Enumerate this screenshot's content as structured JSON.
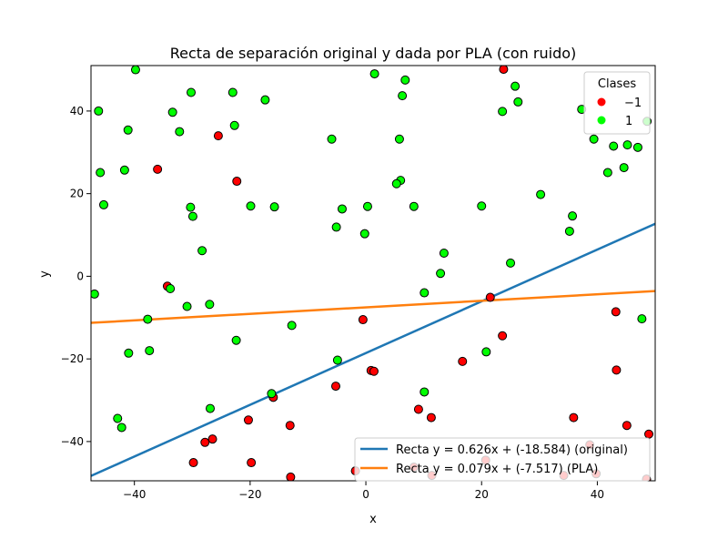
{
  "chart_data": {
    "type": "scatter",
    "title": "Recta de separación original y dada por PLA (con ruido)",
    "xlabel": "x",
    "ylabel": "y",
    "xlim": [
      -47.5,
      50
    ],
    "ylim": [
      -49.5,
      51
    ],
    "xticks": [
      -40,
      -20,
      0,
      20,
      40
    ],
    "yticks": [
      -40,
      -20,
      0,
      20,
      40
    ],
    "xtick_labels": [
      "−40",
      "−20",
      "0",
      "20",
      "40"
    ],
    "ytick_labels": [
      "−40",
      "−20",
      "0",
      "20",
      "40"
    ],
    "grid": false,
    "legend_classes": {
      "title": "Clases",
      "placement": "top-right",
      "entries": [
        {
          "label": "−1",
          "color": "#ff0000"
        },
        {
          "label": "1",
          "color": "#00ff00"
        }
      ]
    },
    "legend_lines": {
      "placement": "bottom-right",
      "entries": [
        {
          "label": "Recta y = 0.626x + (-18.584) (original)",
          "color": "#1f77b4"
        },
        {
          "label": "Recta y = 0.079x + (-7.517) (PLA)",
          "color": "#ff7f0e"
        }
      ]
    },
    "lines": [
      {
        "name": "Recta y = 0.626x + (-18.584) (original)",
        "slope": 0.626,
        "intercept": -18.584,
        "color": "#1f77b4"
      },
      {
        "name": "Recta y = 0.079x + (-7.517) (PLA)",
        "slope": 0.079,
        "intercept": -7.517,
        "color": "#ff7f0e"
      }
    ],
    "series": [
      {
        "name": "−1",
        "color": "#ff0000",
        "points": [
          [
            23.8,
            50.1
          ],
          [
            -25.5,
            34.0
          ],
          [
            -22.3,
            23.0
          ],
          [
            -36.0,
            25.9
          ],
          [
            -34.3,
            -2.4
          ],
          [
            21.5,
            -5.1
          ],
          [
            43.2,
            -8.6
          ],
          [
            -0.5,
            -10.5
          ],
          [
            23.6,
            -14.4
          ],
          [
            16.7,
            -20.6
          ],
          [
            43.3,
            -22.7
          ],
          [
            0.9,
            -22.8
          ],
          [
            1.4,
            -23.0
          ],
          [
            -5.2,
            -26.6
          ],
          [
            -16.0,
            -29.3
          ],
          [
            9.1,
            -32.2
          ],
          [
            11.3,
            -34.2
          ],
          [
            35.9,
            -34.2
          ],
          [
            -20.3,
            -34.8
          ],
          [
            -13.1,
            -36.1
          ],
          [
            45.1,
            -36.1
          ],
          [
            48.9,
            -38.2
          ],
          [
            -26.5,
            -39.4
          ],
          [
            -27.8,
            -40.2
          ],
          [
            38.7,
            -40.8
          ],
          [
            -29.8,
            -45.1
          ],
          [
            -19.8,
            -45.1
          ],
          [
            8.3,
            -46.2
          ],
          [
            -1.8,
            -47.1
          ],
          [
            39.8,
            -47.8
          ],
          [
            11.4,
            -48.2
          ],
          [
            34.2,
            -48.2
          ],
          [
            -13.0,
            -48.6
          ],
          [
            48.5,
            -49.1
          ],
          [
            20.7,
            -44.5
          ]
        ]
      },
      {
        "name": "1",
        "color": "#00ff00",
        "points": [
          [
            -39.8,
            50.0
          ],
          [
            1.5,
            49.0
          ],
          [
            6.8,
            47.5
          ],
          [
            25.8,
            46.0
          ],
          [
            -23.0,
            44.5
          ],
          [
            -30.2,
            44.5
          ],
          [
            6.3,
            43.7
          ],
          [
            -17.4,
            42.7
          ],
          [
            26.3,
            42.2
          ],
          [
            -46.2,
            40.0
          ],
          [
            -33.4,
            39.7
          ],
          [
            37.3,
            40.4
          ],
          [
            23.6,
            39.9
          ],
          [
            48.6,
            37.5
          ],
          [
            -22.7,
            36.5
          ],
          [
            -41.1,
            35.4
          ],
          [
            -32.2,
            35.0
          ],
          [
            -5.9,
            33.2
          ],
          [
            5.8,
            33.2
          ],
          [
            39.4,
            33.2
          ],
          [
            45.2,
            31.8
          ],
          [
            42.8,
            31.5
          ],
          [
            47.0,
            31.2
          ],
          [
            44.6,
            26.3
          ],
          [
            -41.7,
            25.7
          ],
          [
            -45.9,
            25.1
          ],
          [
            41.8,
            25.1
          ],
          [
            6.0,
            23.2
          ],
          [
            5.3,
            22.4
          ],
          [
            30.2,
            19.8
          ],
          [
            -45.3,
            17.3
          ],
          [
            -19.9,
            17.0
          ],
          [
            -15.8,
            16.8
          ],
          [
            0.3,
            16.9
          ],
          [
            8.3,
            16.9
          ],
          [
            20.0,
            17.0
          ],
          [
            -30.3,
            16.7
          ],
          [
            -4.1,
            16.3
          ],
          [
            -29.9,
            14.5
          ],
          [
            35.7,
            14.6
          ],
          [
            -5.1,
            11.9
          ],
          [
            -0.2,
            10.3
          ],
          [
            35.2,
            10.9
          ],
          [
            -28.3,
            6.2
          ],
          [
            13.5,
            5.6
          ],
          [
            25.0,
            3.2
          ],
          [
            12.9,
            0.7
          ],
          [
            -33.8,
            -3.0
          ],
          [
            -46.9,
            -4.3
          ],
          [
            10.1,
            -4.0
          ],
          [
            -27.0,
            -6.8
          ],
          [
            -30.9,
            -7.3
          ],
          [
            -37.7,
            -10.4
          ],
          [
            47.7,
            -10.3
          ],
          [
            -12.8,
            -11.9
          ],
          [
            -22.4,
            -15.5
          ],
          [
            -37.4,
            -18.0
          ],
          [
            -41.0,
            -18.6
          ],
          [
            20.8,
            -18.3
          ],
          [
            -4.9,
            -20.3
          ],
          [
            10.1,
            -28.0
          ],
          [
            -16.3,
            -28.4
          ],
          [
            -26.9,
            -32.0
          ],
          [
            -42.9,
            -34.4
          ],
          [
            -42.2,
            -36.6
          ]
        ]
      }
    ]
  }
}
